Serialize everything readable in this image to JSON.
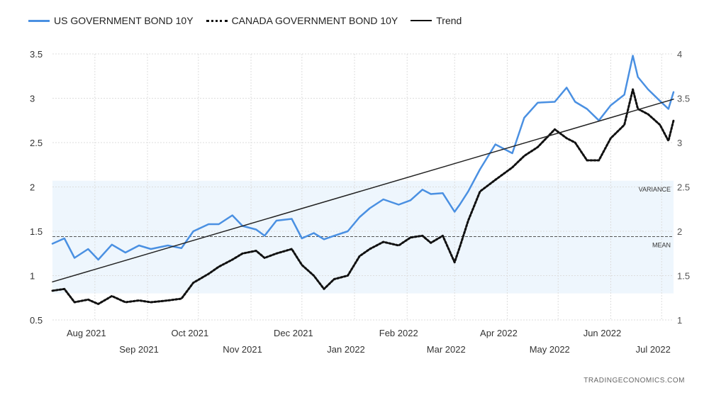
{
  "chart_data": {
    "type": "line",
    "legend": [
      {
        "label": "US GOVERNMENT BOND 10Y",
        "style": "solid",
        "color": "#4a90e2"
      },
      {
        "label": "CANADA GOVERNMENT BOND 10Y",
        "style": "dotted",
        "color": "#111111"
      },
      {
        "label": "Trend",
        "style": "solid",
        "color": "#111111"
      }
    ],
    "legend_position": "top-left",
    "y_left": {
      "ticks": [
        "3.5",
        "3",
        "2.5",
        "2",
        "1.5",
        "1",
        "0.5"
      ],
      "range": [
        0.5,
        3.5
      ]
    },
    "y_right": {
      "ticks": [
        "4",
        "3.5",
        "3",
        "2.5",
        "2",
        "1.5",
        "1"
      ],
      "range": [
        1,
        4
      ]
    },
    "x_labels_top": [
      "Aug 2021",
      "Oct 2021",
      "Dec 2021",
      "Feb 2022",
      "Apr 2022",
      "Jun 2022"
    ],
    "x_labels_bottom": [
      "Sep 2021",
      "Nov 2021",
      "Jan 2022",
      "Mar 2022",
      "May 2022",
      "Jul 2022"
    ],
    "x_range": [
      "2021-07-07",
      "2022-07-08"
    ],
    "grid": true,
    "annotations": {
      "variance_label": "VARIANCE",
      "mean_label": "MEAN",
      "variance_band": [
        0.8,
        2.07
      ],
      "mean": 1.44
    },
    "series": [
      {
        "name": "US GOVERNMENT BOND 10Y",
        "axis": "left",
        "x": [
          "2021-07-07",
          "2021-07-14",
          "2021-07-20",
          "2021-07-28",
          "2021-08-03",
          "2021-08-11",
          "2021-08-19",
          "2021-08-27",
          "2021-09-03",
          "2021-09-13",
          "2021-09-21",
          "2021-09-28",
          "2021-10-07",
          "2021-10-13",
          "2021-10-21",
          "2021-10-27",
          "2021-11-04",
          "2021-11-09",
          "2021-11-16",
          "2021-11-25",
          "2021-12-01",
          "2021-12-08",
          "2021-12-14",
          "2021-12-20",
          "2021-12-28",
          "2022-01-04",
          "2022-01-10",
          "2022-01-18",
          "2022-01-27",
          "2022-02-03",
          "2022-02-10",
          "2022-02-15",
          "2022-02-22",
          "2022-03-01",
          "2022-03-04",
          "2022-03-09",
          "2022-03-16",
          "2022-03-25",
          "2022-04-04",
          "2022-04-11",
          "2022-04-19",
          "2022-04-29",
          "2022-05-06",
          "2022-05-11",
          "2022-05-18",
          "2022-05-25",
          "2022-06-01",
          "2022-06-09",
          "2022-06-14",
          "2022-06-17",
          "2022-06-23",
          "2022-06-30",
          "2022-07-05",
          "2022-07-08"
        ],
        "values": [
          1.36,
          1.42,
          1.2,
          1.3,
          1.18,
          1.35,
          1.26,
          1.34,
          1.3,
          1.34,
          1.31,
          1.5,
          1.58,
          1.58,
          1.68,
          1.56,
          1.52,
          1.45,
          1.62,
          1.64,
          1.42,
          1.48,
          1.41,
          1.45,
          1.5,
          1.66,
          1.76,
          1.86,
          1.8,
          1.85,
          1.97,
          1.92,
          1.93,
          1.72,
          1.8,
          1.95,
          2.2,
          2.48,
          2.38,
          2.78,
          2.95,
          2.96,
          3.12,
          2.96,
          2.88,
          2.75,
          2.92,
          3.04,
          3.48,
          3.24,
          3.1,
          2.97,
          2.88,
          3.07
        ]
      },
      {
        "name": "CANADA GOVERNMENT BOND 10Y",
        "axis": "right",
        "x": [
          "2021-07-07",
          "2021-07-14",
          "2021-07-20",
          "2021-07-28",
          "2021-08-03",
          "2021-08-11",
          "2021-08-19",
          "2021-08-27",
          "2021-09-03",
          "2021-09-13",
          "2021-09-21",
          "2021-09-28",
          "2021-10-07",
          "2021-10-13",
          "2021-10-21",
          "2021-10-27",
          "2021-11-04",
          "2021-11-09",
          "2021-11-16",
          "2021-11-25",
          "2021-12-01",
          "2021-12-08",
          "2021-12-14",
          "2021-12-20",
          "2021-12-28",
          "2022-01-04",
          "2022-01-10",
          "2022-01-18",
          "2022-01-27",
          "2022-02-03",
          "2022-02-10",
          "2022-02-15",
          "2022-02-22",
          "2022-03-01",
          "2022-03-04",
          "2022-03-09",
          "2022-03-16",
          "2022-03-25",
          "2022-04-04",
          "2022-04-11",
          "2022-04-19",
          "2022-04-29",
          "2022-05-06",
          "2022-05-11",
          "2022-05-18",
          "2022-05-25",
          "2022-06-01",
          "2022-06-09",
          "2022-06-14",
          "2022-06-17",
          "2022-06-23",
          "2022-06-30",
          "2022-07-05",
          "2022-07-08"
        ],
        "values": [
          1.33,
          1.35,
          1.2,
          1.23,
          1.18,
          1.27,
          1.2,
          1.22,
          1.2,
          1.22,
          1.24,
          1.42,
          1.52,
          1.6,
          1.68,
          1.75,
          1.78,
          1.7,
          1.75,
          1.8,
          1.62,
          1.5,
          1.35,
          1.46,
          1.5,
          1.72,
          1.8,
          1.88,
          1.84,
          1.93,
          1.95,
          1.87,
          1.95,
          1.65,
          1.82,
          2.12,
          2.45,
          2.58,
          2.72,
          2.85,
          2.95,
          3.15,
          3.05,
          3.0,
          2.8,
          2.8,
          3.05,
          3.2,
          3.6,
          3.38,
          3.32,
          3.2,
          3.02,
          3.25
        ]
      },
      {
        "name": "Trend",
        "axis": "left",
        "x": [
          "2021-07-07",
          "2022-07-08"
        ],
        "values": [
          0.93,
          2.99
        ]
      }
    ]
  },
  "footer": {
    "watermark": "TRADINGECONOMICS.COM"
  }
}
